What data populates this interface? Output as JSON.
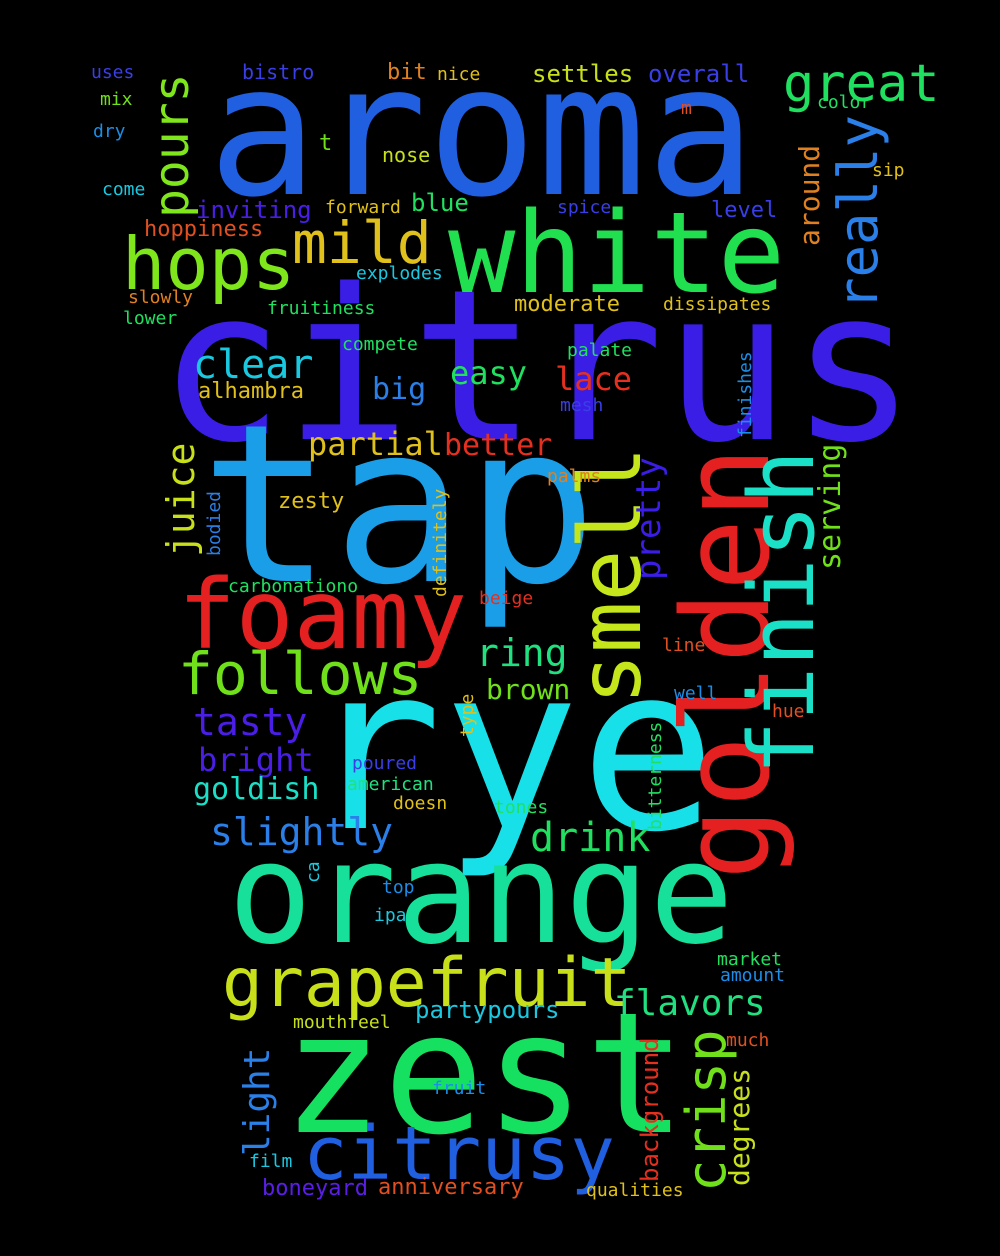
{
  "words": {
    "aroma": {
      "text": "aroma",
      "color": "#1f5fe0"
    },
    "citrus": {
      "text": "citrus",
      "color": "#3a1ee6"
    },
    "tap": {
      "text": "tap",
      "color": "#1a9ee8"
    },
    "rye": {
      "text": "rye",
      "color": "#18e0e8"
    },
    "orange": {
      "text": "orange",
      "color": "#16e09a"
    },
    "zest": {
      "text": "zest",
      "color": "#16e060"
    },
    "white": {
      "text": "white",
      "color": "#20e050"
    },
    "golden": {
      "text": "golden",
      "color": "#e52020"
    },
    "foamy": {
      "text": "foamy",
      "color": "#e52020"
    },
    "smell": {
      "text": "smell",
      "color": "#c4e61a"
    },
    "finish": {
      "text": "finish",
      "color": "#1ae0c8"
    },
    "hops": {
      "text": "hops",
      "color": "#7ee61a"
    },
    "mild": {
      "text": "mild",
      "color": "#e0c01a"
    },
    "grapefruit": {
      "text": "grapefruit",
      "color": "#c8e01a"
    },
    "citrusy": {
      "text": "citrusy",
      "color": "#1f5fe0"
    },
    "follows": {
      "text": "follows",
      "color": "#70e01a"
    },
    "pours": {
      "text": "pours",
      "color": "#7ee61a"
    },
    "great": {
      "text": "great",
      "color": "#20e060"
    },
    "really": {
      "text": "really",
      "color": "#2a80e8"
    },
    "crisp": {
      "text": "crisp",
      "color": "#70e01a"
    },
    "clear": {
      "text": "clear",
      "color": "#1ac8e0"
    },
    "juice": {
      "text": "juice",
      "color": "#c8e01a"
    },
    "tasty": {
      "text": "tasty",
      "color": "#4a1ee6"
    },
    "slightly": {
      "text": "slightly",
      "color": "#2a80e8"
    },
    "ring": {
      "text": "ring",
      "color": "#20e080"
    },
    "drink": {
      "text": "drink",
      "color": "#20e060"
    },
    "easy": {
      "text": "easy",
      "color": "#20e060"
    },
    "lace": {
      "text": "lace",
      "color": "#e53020"
    },
    "partial": {
      "text": "partial",
      "color": "#e0c01a"
    },
    "better": {
      "text": "better",
      "color": "#e53020"
    },
    "pretty": {
      "text": "pretty",
      "color": "#3a1ee6"
    },
    "flavors": {
      "text": "flavors",
      "color": "#20e080"
    },
    "bright": {
      "text": "bright",
      "color": "#4a1ee6"
    },
    "goldish": {
      "text": "goldish",
      "color": "#1ae0c8"
    },
    "big": {
      "text": "big",
      "color": "#2a80e8"
    },
    "brown": {
      "text": "brown",
      "color": "#70e01a"
    },
    "serving": {
      "text": "serving",
      "color": "#70e01a"
    },
    "around": {
      "text": "around",
      "color": "#e08020"
    },
    "light": {
      "text": "light",
      "color": "#2a80e8"
    },
    "degrees": {
      "text": "degrees",
      "color": "#c8e01a"
    },
    "partypours": {
      "text": "partypours",
      "color": "#1ac8e0"
    },
    "inviting": {
      "text": "inviting",
      "color": "#4a1ee6"
    },
    "alhambra": {
      "text": "alhambra",
      "color": "#e0c01a"
    },
    "background": {
      "text": "background",
      "color": "#e53020"
    },
    "hoppiness": {
      "text": "hoppiness",
      "color": "#e05020"
    },
    "zesty": {
      "text": "zesty",
      "color": "#e0c01a"
    },
    "blue": {
      "text": "blue",
      "color": "#20e060"
    },
    "settles": {
      "text": "settles",
      "color": "#c8e01a"
    },
    "overall": {
      "text": "overall",
      "color": "#3a3ee6"
    },
    "level": {
      "text": "level",
      "color": "#3a3ee6"
    },
    "moderate": {
      "text": "moderate",
      "color": "#e0c01a"
    },
    "anniversary": {
      "text": "anniversary",
      "color": "#e05020"
    },
    "boneyard": {
      "text": "boneyard",
      "color": "#5a1ee6"
    },
    "bistro": {
      "text": "bistro",
      "color": "#3a3ee6"
    },
    "bit": {
      "text": "bit",
      "color": "#e08020"
    },
    "nice": {
      "text": "nice",
      "color": "#e0c01a"
    },
    "nose": {
      "text": "nose",
      "color": "#c8e01a"
    },
    "t": {
      "text": "t",
      "color": "#70e01a"
    },
    "forward": {
      "text": "forward",
      "color": "#e0c01a"
    },
    "spice": {
      "text": "spice",
      "color": "#3a3ee6"
    },
    "explodes": {
      "text": "explodes",
      "color": "#1ac8e0"
    },
    "fruitiness": {
      "text": "fruitiness",
      "color": "#20e060"
    },
    "dissipates": {
      "text": "dissipates",
      "color": "#e0c01a"
    },
    "compete": {
      "text": "compete",
      "color": "#20e060"
    },
    "palate": {
      "text": "palate",
      "color": "#20e060"
    },
    "mesh": {
      "text": "mesh",
      "color": "#3a3ee6"
    },
    "finishes": {
      "text": "finishes",
      "color": "#1a8ee8"
    },
    "palms": {
      "text": "palms",
      "color": "#e08020"
    },
    "definitely": {
      "text": "definitely",
      "color": "#e0c01a"
    },
    "bodied": {
      "text": "bodied",
      "color": "#2a80e8"
    },
    "carbonationo": {
      "text": "carbonationo",
      "color": "#20e060"
    },
    "beige": {
      "text": "beige",
      "color": "#e53020"
    },
    "line": {
      "text": "line",
      "color": "#e05020"
    },
    "well": {
      "text": "well",
      "color": "#1a8ee8"
    },
    "hue": {
      "text": "hue",
      "color": "#e05020"
    },
    "type": {
      "text": "type",
      "color": "#e0c01a"
    },
    "bitterness": {
      "text": "bitterness",
      "color": "#20e060"
    },
    "poured": {
      "text": "poured",
      "color": "#3a3ee6"
    },
    "american": {
      "text": "american",
      "color": "#20e080"
    },
    "doesn": {
      "text": "doesn",
      "color": "#e0c01a"
    },
    "tones": {
      "text": "tones",
      "color": "#20e060"
    },
    "ca": {
      "text": "ca",
      "color": "#1ac8e0"
    },
    "top": {
      "text": "top",
      "color": "#1a8ee8"
    },
    "ipa": {
      "text": "ipa",
      "color": "#1ac8e0"
    },
    "market": {
      "text": "market",
      "color": "#20e060"
    },
    "amount": {
      "text": "amount",
      "color": "#1a8ee8"
    },
    "mouthfeel": {
      "text": "mouthfeel",
      "color": "#c8e01a"
    },
    "much": {
      "text": "much",
      "color": "#e05020"
    },
    "fruit": {
      "text": "fruit",
      "color": "#1a8ee8"
    },
    "film": {
      "text": "film",
      "color": "#1ac8e0"
    },
    "qualities": {
      "text": "qualities",
      "color": "#e0c01a"
    },
    "uses": {
      "text": "uses",
      "color": "#3a3ee6"
    },
    "mix": {
      "text": "mix",
      "color": "#70e01a"
    },
    "dry": {
      "text": "dry",
      "color": "#1a8ee8"
    },
    "come": {
      "text": "come",
      "color": "#1ac8e0"
    },
    "slowly": {
      "text": "slowly",
      "color": "#e08020"
    },
    "lower": {
      "text": "lower",
      "color": "#20e060"
    },
    "color": {
      "text": "color",
      "color": "#20e060"
    },
    "m": {
      "text": "m",
      "color": "#e05020"
    },
    "sip": {
      "text": "sip",
      "color": "#e0c01a"
    }
  }
}
